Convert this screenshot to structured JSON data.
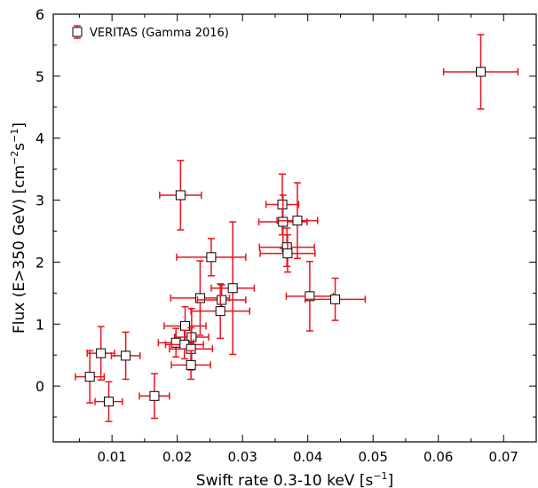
{
  "chart_data": {
    "type": "scatter",
    "title": "",
    "xlabel": "Swift rate 0.3-10 keV [s",
    "xlabel_sup": "−1",
    "xlabel_end": "]",
    "ylabel": "Flux (E>350 GeV) [cm",
    "ylabel_sup1": "−2",
    "ylabel_mid": "s",
    "ylabel_sup2": "−1",
    "ylabel_end": "]",
    "xlim": [
      0.001,
      0.075
    ],
    "ylim": [
      -0.9,
      6
    ],
    "xticks": [
      0.01,
      0.02,
      0.03,
      0.04,
      0.05,
      0.06,
      0.07
    ],
    "xtick_labels": [
      "0.01",
      "0.02",
      "0.03",
      "0.04",
      "0.05",
      "0.06",
      "0.07"
    ],
    "yticks": [
      0,
      1,
      2,
      3,
      4,
      5,
      6
    ],
    "ytick_labels": [
      "0",
      "1",
      "2",
      "3",
      "4",
      "5",
      "6"
    ],
    "grid": false,
    "legend_position": "top-left",
    "series": [
      {
        "name": "VERITAS (Gamma 2016)",
        "marker": "square",
        "marker_face": "#ffffff",
        "marker_edge": "#000000",
        "errorbar_color": "#e8141e",
        "points": [
          {
            "x": 0.0665,
            "y": 5.07,
            "xerr": 0.0057,
            "yerr_lo": 0.6,
            "yerr_hi": 0.6
          },
          {
            "x": 0.0205,
            "y": 3.08,
            "xerr": 0.0032,
            "yerr_lo": 0.56,
            "yerr_hi": 0.56
          },
          {
            "x": 0.0361,
            "y": 2.93,
            "xerr": 0.0025,
            "yerr_lo": 0.49,
            "yerr_hi": 0.49
          },
          {
            "x": 0.0362,
            "y": 2.65,
            "xerr": 0.0037,
            "yerr_lo": 0.43,
            "yerr_hi": 0.43
          },
          {
            "x": 0.0384,
            "y": 2.67,
            "xerr": 0.0031,
            "yerr_lo": 0.61,
            "yerr_hi": 0.61
          },
          {
            "x": 0.0368,
            "y": 2.24,
            "xerr": 0.0042,
            "yerr_lo": 0.31,
            "yerr_hi": 0.31
          },
          {
            "x": 0.0369,
            "y": 2.14,
            "xerr": 0.0042,
            "yerr_lo": 0.3,
            "yerr_hi": 0.3
          },
          {
            "x": 0.0252,
            "y": 2.08,
            "xerr": 0.0053,
            "yerr_lo": 0.3,
            "yerr_hi": 0.3
          },
          {
            "x": 0.0285,
            "y": 1.58,
            "xerr": 0.0033,
            "yerr_lo": 1.07,
            "yerr_hi": 1.07
          },
          {
            "x": 0.0235,
            "y": 1.42,
            "xerr": 0.0045,
            "yerr_lo": 0.6,
            "yerr_hi": 0.6
          },
          {
            "x": 0.0268,
            "y": 1.39,
            "xerr": 0.0037,
            "yerr_lo": 0.24,
            "yerr_hi": 0.24
          },
          {
            "x": 0.0266,
            "y": 1.21,
            "xerr": 0.0045,
            "yerr_lo": 0.44,
            "yerr_hi": 0.44
          },
          {
            "x": 0.0403,
            "y": 1.45,
            "xerr": 0.0036,
            "yerr_lo": 0.56,
            "yerr_hi": 0.56
          },
          {
            "x": 0.0442,
            "y": 1.4,
            "xerr": 0.0046,
            "yerr_lo": 0.34,
            "yerr_hi": 0.34
          },
          {
            "x": 0.0212,
            "y": 0.97,
            "xerr": 0.0032,
            "yerr_lo": 0.31,
            "yerr_hi": 0.31
          },
          {
            "x": 0.0222,
            "y": 0.79,
            "xerr": 0.0026,
            "yerr_lo": 0.46,
            "yerr_hi": 0.46
          },
          {
            "x": 0.0198,
            "y": 0.7,
            "xerr": 0.0027,
            "yerr_lo": 0.23,
            "yerr_hi": 0.23
          },
          {
            "x": 0.0211,
            "y": 0.67,
            "xerr": 0.0029,
            "yerr_lo": 0.23,
            "yerr_hi": 0.23
          },
          {
            "x": 0.0221,
            "y": 0.6,
            "xerr": 0.0033,
            "yerr_lo": 0.34,
            "yerr_hi": 0.34
          },
          {
            "x": 0.0221,
            "y": 0.34,
            "xerr": 0.003,
            "yerr_lo": 0.23,
            "yerr_hi": 0.23
          },
          {
            "x": 0.0083,
            "y": 0.53,
            "xerr": 0.0021,
            "yerr_lo": 0.43,
            "yerr_hi": 0.43
          },
          {
            "x": 0.0121,
            "y": 0.49,
            "xerr": 0.0022,
            "yerr_lo": 0.38,
            "yerr_hi": 0.38
          },
          {
            "x": 0.0066,
            "y": 0.15,
            "xerr": 0.0022,
            "yerr_lo": 0.42,
            "yerr_hi": 0.42
          },
          {
            "x": 0.0095,
            "y": -0.25,
            "xerr": 0.0021,
            "yerr_lo": 0.32,
            "yerr_hi": 0.32
          },
          {
            "x": 0.0165,
            "y": -0.16,
            "xerr": 0.0023,
            "yerr_lo": 0.36,
            "yerr_hi": 0.36
          }
        ]
      }
    ]
  }
}
